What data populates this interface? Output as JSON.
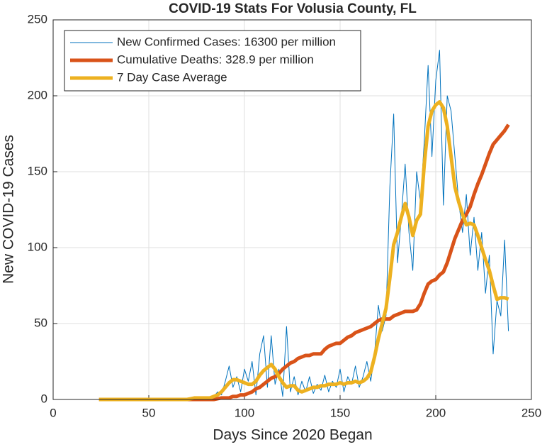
{
  "chart_data": {
    "type": "line",
    "title": "COVID-19 Stats For Volusia County, FL",
    "x_label": "Days Since 2020 Began",
    "y_label": "New COVID-19 Cases",
    "xlim": [
      0,
      250
    ],
    "xticks": [
      0,
      50,
      100,
      150,
      200,
      250
    ],
    "ylim": [
      0,
      250
    ],
    "yticks": [
      0,
      50,
      100,
      150,
      200,
      250
    ],
    "grid": true,
    "legend": "upper-left",
    "x": [
      24,
      26,
      28,
      30,
      32,
      34,
      36,
      38,
      40,
      42,
      44,
      46,
      48,
      50,
      52,
      54,
      56,
      58,
      60,
      62,
      64,
      66,
      68,
      70,
      72,
      74,
      76,
      78,
      80,
      82,
      84,
      86,
      88,
      90,
      92,
      94,
      96,
      98,
      100,
      102,
      104,
      106,
      108,
      110,
      112,
      114,
      116,
      118,
      120,
      122,
      124,
      126,
      128,
      130,
      132,
      134,
      136,
      138,
      140,
      142,
      144,
      146,
      148,
      150,
      152,
      154,
      156,
      158,
      160,
      162,
      164,
      166,
      168,
      170,
      172,
      174,
      176,
      178,
      180,
      182,
      184,
      186,
      188,
      190,
      192,
      194,
      196,
      198,
      200,
      202,
      204,
      206,
      208,
      210,
      212,
      214,
      216,
      218,
      220,
      222,
      224,
      226,
      228,
      230,
      232,
      234,
      236,
      238
    ],
    "series": [
      {
        "name": "New Confirmed Cases: 16300 per million",
        "color": "#0072bd",
        "linewidth": 1,
        "values": [
          0,
          0,
          0,
          0,
          0,
          0,
          0,
          0,
          0,
          0,
          0,
          0,
          0,
          0,
          0,
          0,
          0,
          0,
          0,
          0,
          0,
          0,
          0,
          0,
          0,
          0,
          0,
          0,
          0,
          1,
          2,
          5,
          3,
          12,
          22,
          8,
          15,
          5,
          20,
          12,
          25,
          3,
          30,
          42,
          8,
          42,
          10,
          20,
          2,
          48,
          5,
          15,
          3,
          12,
          5,
          15,
          4,
          10,
          6,
          16,
          5,
          12,
          8,
          20,
          5,
          15,
          10,
          22,
          8,
          15,
          25,
          12,
          30,
          62,
          45,
          55,
          140,
          188,
          90,
          120,
          155,
          110,
          85,
          150,
          130,
          170,
          220,
          160,
          210,
          230,
          128,
          200,
          190,
          160,
          130,
          110,
          135,
          95,
          120,
          85,
          110,
          70,
          95,
          30,
          65,
          55,
          105,
          45
        ]
      },
      {
        "name": "Cumulative Deaths: 328.9 per million",
        "color": "#d95319",
        "linewidth": 5,
        "values": [
          0,
          0,
          0,
          0,
          0,
          0,
          0,
          0,
          0,
          0,
          0,
          0,
          0,
          0,
          0,
          0,
          0,
          0,
          0,
          0,
          0,
          0,
          0,
          0,
          0,
          0,
          0,
          0,
          0,
          0,
          0,
          0.5,
          1,
          1,
          1,
          2,
          2,
          3,
          3,
          4,
          5,
          7,
          8,
          10,
          12,
          14,
          15,
          17,
          20,
          22,
          24,
          25,
          27,
          28,
          29,
          29,
          30,
          30,
          30,
          33,
          35,
          36,
          37,
          37,
          39,
          41,
          42,
          44,
          45,
          46,
          47,
          48,
          50,
          52,
          53,
          53,
          53,
          55,
          56,
          57,
          58,
          58,
          58,
          59,
          63,
          70,
          76,
          78,
          79,
          82,
          84,
          90,
          98,
          106,
          112,
          118,
          122,
          127,
          135,
          142,
          148,
          155,
          162,
          168,
          171,
          174,
          177,
          181
        ]
      },
      {
        "name": "7 Day Case Average",
        "color": "#edb120",
        "linewidth": 5,
        "values": [
          0,
          0,
          0,
          0,
          0,
          0,
          0,
          0,
          0,
          0,
          0,
          0,
          0,
          0,
          0,
          0,
          0,
          0,
          0,
          0,
          0,
          0,
          0,
          0,
          0.5,
          1,
          1,
          1,
          1,
          1,
          2,
          3,
          5,
          8,
          11,
          13,
          13,
          12,
          11,
          10,
          10,
          12,
          16,
          19,
          21,
          23,
          20,
          15,
          11,
          8,
          9,
          9,
          6,
          5,
          6,
          7,
          8,
          8,
          9,
          9,
          10,
          10,
          10,
          11,
          10,
          11,
          11,
          12,
          11,
          12,
          14,
          18,
          28,
          40,
          50,
          60,
          80,
          102,
          110,
          120,
          129,
          120,
          108,
          118,
          122,
          155,
          180,
          190,
          194,
          196,
          192,
          180,
          160,
          140,
          130,
          122,
          115,
          116,
          115,
          108,
          100,
          92,
          85,
          75,
          66,
          67,
          67,
          66
        ]
      }
    ]
  }
}
